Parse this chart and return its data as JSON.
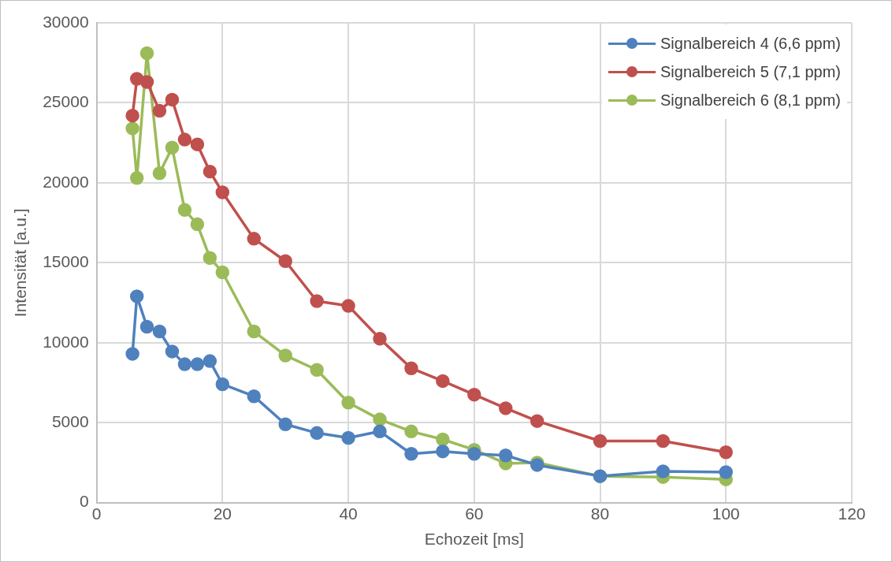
{
  "chart_data": {
    "type": "line",
    "xlabel": "Echozeit [ms]",
    "ylabel": "Intensität [a.u.]",
    "x": [
      5.7,
      6.4,
      8,
      10,
      12,
      14,
      16,
      18,
      20,
      25,
      30,
      35,
      40,
      45,
      50,
      55,
      60,
      65,
      70,
      80,
      90,
      100
    ],
    "xlim": [
      0,
      120
    ],
    "xticks": [
      0,
      20,
      40,
      60,
      80,
      100,
      120
    ],
    "ylim": [
      0,
      30000
    ],
    "yticks": [
      0,
      5000,
      10000,
      15000,
      20000,
      25000,
      30000
    ],
    "grid": true,
    "legend": "top right",
    "marker": "circle",
    "line_style": "solid",
    "series": [
      {
        "name": "Signalbereich 4 (6,6 ppm)",
        "color": "#4f81bd",
        "values": [
          9300,
          12900,
          11000,
          10700,
          9450,
          8650,
          8650,
          8850,
          7400,
          6650,
          4900,
          4350,
          4050,
          4450,
          3050,
          3200,
          3050,
          2950,
          2350,
          1650,
          1950,
          1900
        ]
      },
      {
        "name": "Signalbereich 5 (7,1 ppm)",
        "color": "#c0504d",
        "values": [
          24200,
          26500,
          26300,
          24500,
          25200,
          22700,
          22400,
          20700,
          19400,
          16500,
          15100,
          12600,
          12300,
          10250,
          8400,
          7600,
          6750,
          5900,
          5100,
          3850,
          3850,
          3150
        ]
      },
      {
        "name": "Signalbereich 6 (8,1 ppm)",
        "color": "#9bbb59",
        "values": [
          23400,
          20300,
          28100,
          20600,
          22200,
          18300,
          17400,
          15300,
          14400,
          10700,
          9200,
          8300,
          6250,
          5200,
          4450,
          3950,
          3300,
          2450,
          2500,
          1650,
          1600,
          1450
        ]
      }
    ]
  }
}
